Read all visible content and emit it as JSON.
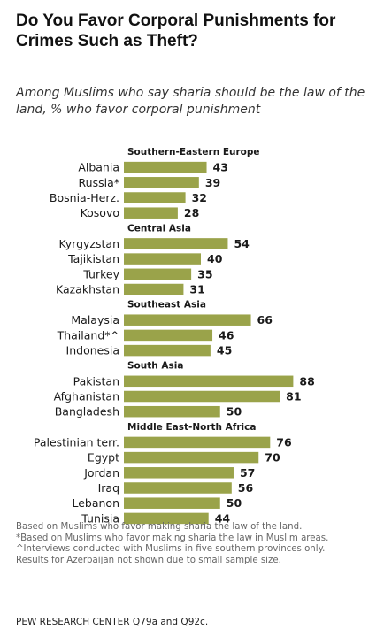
{
  "page": {
    "title": "Do You Favor Corporal Punishments for Crimes Such as Theft?",
    "subtitle": "Among Muslims who say sharia should be the law of the land, % who favor corporal punishment"
  },
  "chart_data": {
    "type": "bar",
    "orientation": "horizontal",
    "bar_color": "#9aa34a",
    "xlim": [
      0,
      100
    ],
    "grid": false,
    "legend": "none",
    "groups": [
      {
        "name": "Southern-Eastern  Europe",
        "items": [
          {
            "label": "Albania",
            "value": 43
          },
          {
            "label": "Russia*",
            "value": 39
          },
          {
            "label": "Bosnia-Herz.",
            "value": 32
          },
          {
            "label": "Kosovo",
            "value": 28
          }
        ]
      },
      {
        "name": "Central Asia",
        "items": [
          {
            "label": "Kyrgyzstan",
            "value": 54
          },
          {
            "label": "Tajikistan",
            "value": 40
          },
          {
            "label": "Turkey",
            "value": 35
          },
          {
            "label": "Kazakhstan",
            "value": 31
          }
        ]
      },
      {
        "name": "Southeast Asia",
        "items": [
          {
            "label": "Malaysia",
            "value": 66
          },
          {
            "label": "Thailand*^",
            "value": 46
          },
          {
            "label": "Indonesia",
            "value": 45
          }
        ]
      },
      {
        "name": "South Asia",
        "items": [
          {
            "label": "Pakistan",
            "value": 88
          },
          {
            "label": "Afghanistan",
            "value": 81
          },
          {
            "label": "Bangladesh",
            "value": 50
          }
        ]
      },
      {
        "name": "Middle East-North Africa",
        "items": [
          {
            "label": "Palestinian terr.",
            "value": 76
          },
          {
            "label": "Egypt",
            "value": 70
          },
          {
            "label": "Jordan",
            "value": 57
          },
          {
            "label": "Iraq",
            "value": 56
          },
          {
            "label": "Lebanon",
            "value": 50
          },
          {
            "label": "Tunisia",
            "value": 44
          }
        ]
      }
    ]
  },
  "notes": [
    "Based on Muslims who favor making sharia the law of the land.",
    "*Based on Muslims who favor making sharia the law in Muslim areas.",
    "^Interviews conducted with Muslims in five southern provinces only.",
    "Results for Azerbaijan not shown due to small sample size."
  ],
  "source": "PEW RESEARCH CENTER Q79a and Q92c."
}
